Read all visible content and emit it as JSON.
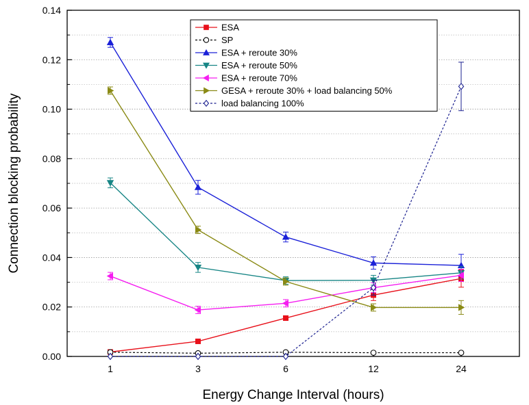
{
  "chart_data": {
    "type": "line",
    "title": "",
    "xlabel": "Energy Change Interval (hours)",
    "ylabel": "Connection blocking probability",
    "categories": [
      "1",
      "3",
      "6",
      "12",
      "24"
    ],
    "ylim": [
      0,
      0.14
    ],
    "yticks": [
      "0.00",
      "0.02",
      "0.04",
      "0.06",
      "0.08",
      "0.10",
      "0.12",
      "0.14"
    ],
    "grid": {
      "horizontal": "dotted",
      "vertical": "none"
    },
    "legend_position": "top-center",
    "series": [
      {
        "name": "ESA",
        "color": "#e8101a",
        "marker": "square",
        "filled": true,
        "dash": "solid",
        "values": [
          0.0018,
          0.0061,
          0.0155,
          0.0248,
          0.0315
        ],
        "errors": [
          0.0003,
          0.0006,
          0.0008,
          0.0022,
          0.0035
        ]
      },
      {
        "name": "SP",
        "color": "#000000",
        "marker": "circle",
        "filled": false,
        "dash": "dashed",
        "values": [
          0.0017,
          0.0013,
          0.0017,
          0.0015,
          0.0015
        ],
        "errors": [
          0.0002,
          0.0002,
          0.0002,
          0.0002,
          0.0002
        ]
      },
      {
        "name": "ESA + reroute 30%",
        "color": "#1b21d8",
        "marker": "triangle-up",
        "filled": true,
        "dash": "solid",
        "values": [
          0.127,
          0.0684,
          0.0483,
          0.0378,
          0.0368
        ],
        "errors": [
          0.002,
          0.0028,
          0.002,
          0.0025,
          0.0045
        ]
      },
      {
        "name": "ESA + reroute 50%",
        "color": "#168585",
        "marker": "triangle-down",
        "filled": true,
        "dash": "solid",
        "values": [
          0.0702,
          0.036,
          0.0307,
          0.0308,
          0.0338
        ],
        "errors": [
          0.002,
          0.002,
          0.0015,
          0.002,
          0.0025
        ]
      },
      {
        "name": "ESA + reroute 70%",
        "color": "#f51df0",
        "marker": "triangle-left",
        "filled": true,
        "dash": "solid",
        "values": [
          0.0325,
          0.0188,
          0.0215,
          0.0278,
          0.0328
        ],
        "errors": [
          0.0015,
          0.0015,
          0.0015,
          0.002,
          0.0025
        ]
      },
      {
        "name": "GESA + reroute 30% + load balancing 50%",
        "color": "#8a8a14",
        "marker": "triangle-right",
        "filled": true,
        "dash": "solid",
        "values": [
          0.1075,
          0.0512,
          0.0303,
          0.0198,
          0.0198
        ],
        "errors": [
          0.0015,
          0.0015,
          0.0015,
          0.0015,
          0.0028
        ]
      },
      {
        "name": "load balancing 100%",
        "color": "#1a1f8f",
        "marker": "diamond",
        "filled": false,
        "dash": "dashed",
        "values": [
          0.0,
          0.0,
          0.0,
          0.0278,
          0.1092
        ],
        "errors": [
          0,
          0,
          0,
          0.003,
          0.0098
        ]
      }
    ]
  }
}
